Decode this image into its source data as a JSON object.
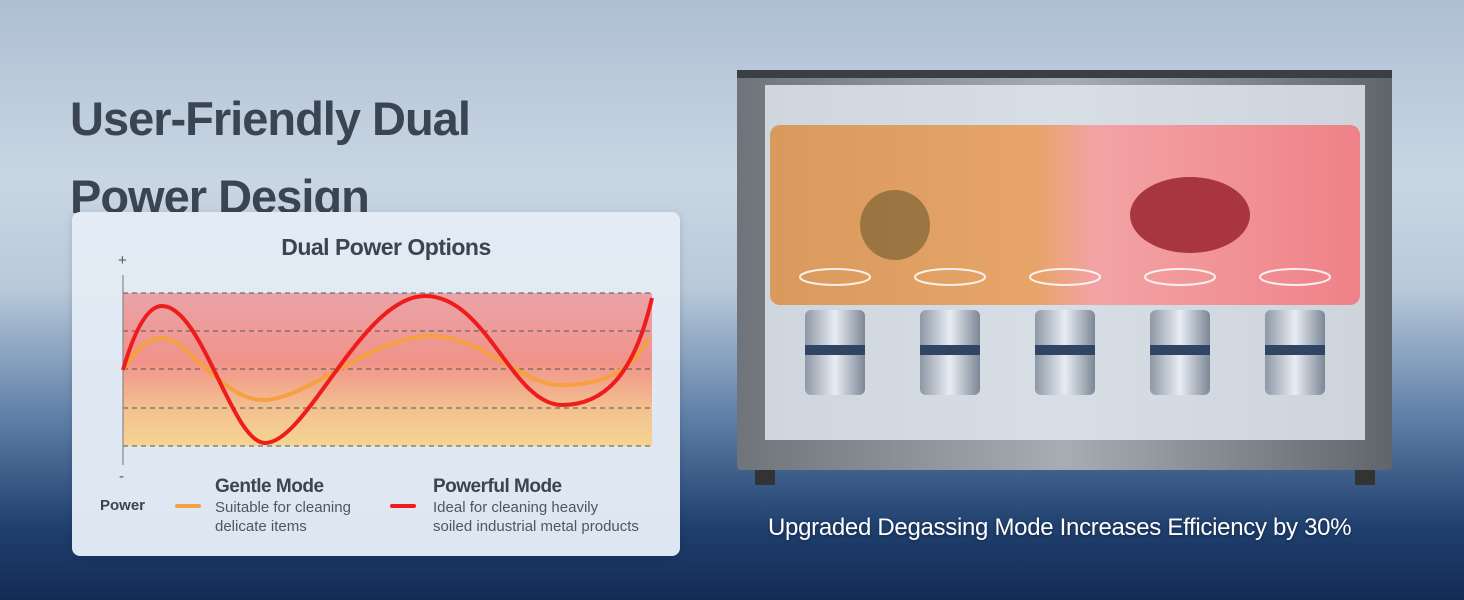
{
  "headline": {
    "line1": "User-Friendly Dual",
    "line2": "Power Design"
  },
  "card": {
    "title": "Dual Power Options",
    "axis_plus": "+",
    "axis_minus": "-",
    "axis_label": "Power",
    "modes": [
      {
        "name": "Gentle Mode",
        "desc_line1": "Suitable for cleaning",
        "desc_line2": "delicate items",
        "color": "#f7a040"
      },
      {
        "name": "Powerful Mode",
        "desc_line1": "Ideal for cleaning heavily",
        "desc_line2": "soiled industrial metal products",
        "color": "#ee1c1c"
      }
    ]
  },
  "caption": "Upgraded Degassing Mode Increases Efficiency by 30%",
  "colors": {
    "text": "#3b4552",
    "gentle": "#f7a040",
    "powerful": "#ee1c1c"
  }
}
